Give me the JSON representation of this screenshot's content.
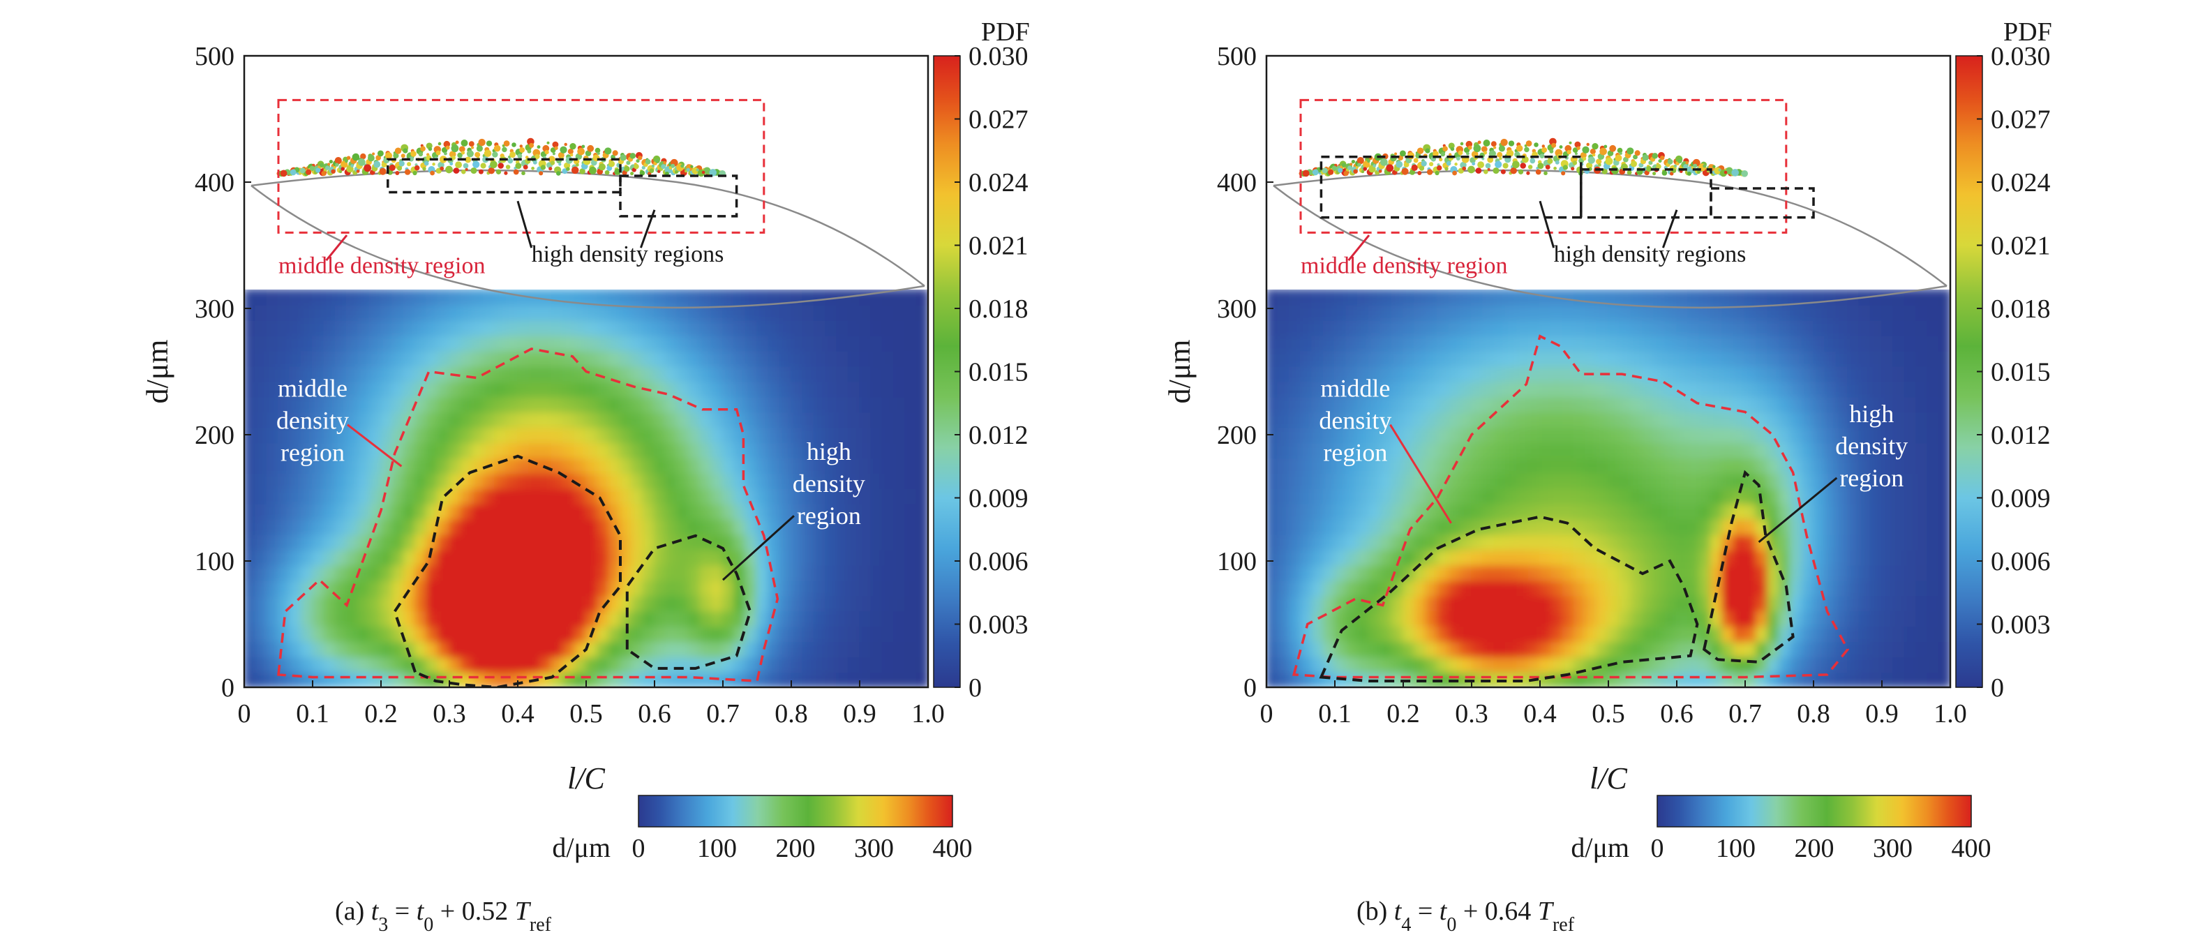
{
  "chart_data": [
    {
      "panel": "a",
      "type": "heatmap",
      "caption": {
        "prefix": "(a) ",
        "t": "t",
        "tsub": "3",
        "mid": " = ",
        "t0": "t",
        "t0sub": "0",
        "rest": " + 0.52 ",
        "T": "T",
        "Tsub": "ref"
      },
      "xlabel": "l/C",
      "ylabel": "d/μm",
      "xlim": [
        0,
        1.0
      ],
      "ylim": [
        0,
        500
      ],
      "xticks": [
        "0",
        "0.1",
        "0.2",
        "0.3",
        "0.4",
        "0.5",
        "0.6",
        "0.7",
        "0.8",
        "0.9",
        "1.0"
      ],
      "yticks": [
        "0",
        "100",
        "200",
        "300",
        "400",
        "500"
      ],
      "colorbar": {
        "title": "PDF",
        "range": [
          0,
          0.03
        ],
        "ticks": [
          "0",
          "0.003",
          "0.006",
          "0.009",
          "0.012",
          "0.015",
          "0.018",
          "0.021",
          "0.024",
          "0.027",
          "0.030"
        ]
      },
      "hcolorbar": {
        "label": "d/μm",
        "range": [
          0,
          400
        ],
        "ticks": [
          "0",
          "100",
          "200",
          "300",
          "400"
        ]
      },
      "contours": {
        "middle_density": [
          [
            0.05,
            10
          ],
          [
            0.06,
            60
          ],
          [
            0.11,
            85
          ],
          [
            0.15,
            65
          ],
          [
            0.2,
            140
          ],
          [
            0.22,
            185
          ],
          [
            0.27,
            250
          ],
          [
            0.34,
            245
          ],
          [
            0.42,
            268
          ],
          [
            0.48,
            262
          ],
          [
            0.5,
            250
          ],
          [
            0.57,
            238
          ],
          [
            0.62,
            232
          ],
          [
            0.67,
            220
          ],
          [
            0.72,
            220
          ],
          [
            0.73,
            200
          ],
          [
            0.73,
            160
          ],
          [
            0.76,
            120
          ],
          [
            0.78,
            70
          ],
          [
            0.76,
            30
          ],
          [
            0.75,
            5
          ],
          [
            0.65,
            8
          ],
          [
            0.55,
            8
          ],
          [
            0.45,
            8
          ],
          [
            0.3,
            8
          ],
          [
            0.2,
            8
          ],
          [
            0.1,
            8
          ],
          [
            0.05,
            10
          ]
        ],
        "high_density": [
          [
            [
              0.25,
              12
            ],
            [
              0.22,
              60
            ],
            [
              0.27,
              100
            ],
            [
              0.29,
              150
            ],
            [
              0.33,
              170
            ],
            [
              0.4,
              183
            ],
            [
              0.46,
              170
            ],
            [
              0.52,
              150
            ],
            [
              0.55,
              120
            ],
            [
              0.55,
              80
            ],
            [
              0.52,
              60
            ],
            [
              0.5,
              30
            ],
            [
              0.45,
              8
            ],
            [
              0.37,
              0
            ],
            [
              0.32,
              2
            ],
            [
              0.28,
              5
            ],
            [
              0.25,
              12
            ]
          ],
          [
            [
              0.56,
              30
            ],
            [
              0.56,
              80
            ],
            [
              0.6,
              110
            ],
            [
              0.66,
              120
            ],
            [
              0.7,
              110
            ],
            [
              0.72,
              90
            ],
            [
              0.74,
              60
            ],
            [
              0.72,
              25
            ],
            [
              0.66,
              15
            ],
            [
              0.6,
              15
            ],
            [
              0.56,
              30
            ]
          ]
        ]
      },
      "annotations": [
        {
          "lines": [
            "middle",
            "density",
            "region"
          ],
          "color": "#ffffff"
        },
        {
          "lines": [
            "high",
            "density",
            "region"
          ],
          "color": "#ffffff"
        }
      ],
      "inset": {
        "labels": {
          "middle": "middle density region",
          "high": "high density regions"
        }
      },
      "blobs": [
        {
          "x": 0.375,
          "y": 60,
          "sx": 0.085,
          "sy": 50,
          "a": 0.034
        },
        {
          "x": 0.45,
          "y": 110,
          "sx": 0.07,
          "sy": 45,
          "a": 0.006
        },
        {
          "x": 0.7,
          "y": 70,
          "sx": 0.035,
          "sy": 35,
          "a": 0.01
        },
        {
          "x": 0.4,
          "y": 140,
          "sx": 0.15,
          "sy": 90,
          "a": 0.012
        },
        {
          "x": 0.42,
          "y": 170,
          "sx": 0.21,
          "sy": 110,
          "a": 0.008
        },
        {
          "x": 0.15,
          "y": 55,
          "sx": 0.08,
          "sy": 40,
          "a": 0.011
        },
        {
          "x": 0.62,
          "y": 90,
          "sx": 0.12,
          "sy": 70,
          "a": 0.009
        },
        {
          "x": 0.5,
          "y": 220,
          "sx": 0.16,
          "sy": 60,
          "a": 0.004
        }
      ]
    },
    {
      "panel": "b",
      "type": "heatmap",
      "caption": {
        "prefix": "(b) ",
        "t": "t",
        "tsub": "4",
        "mid": " = ",
        "t0": "t",
        "t0sub": "0",
        "rest": " + 0.64 ",
        "T": "T",
        "Tsub": "ref"
      },
      "xlabel": "l/C",
      "ylabel": "d/μm",
      "xlim": [
        0,
        1.0
      ],
      "ylim": [
        0,
        500
      ],
      "xticks": [
        "0",
        "0.1",
        "0.2",
        "0.3",
        "0.4",
        "0.5",
        "0.6",
        "0.7",
        "0.8",
        "0.9",
        "1.0"
      ],
      "yticks": [
        "0",
        "100",
        "200",
        "300",
        "400",
        "500"
      ],
      "colorbar": {
        "title": "PDF",
        "range": [
          0,
          0.03
        ],
        "ticks": [
          "0",
          "0.003",
          "0.006",
          "0.009",
          "0.012",
          "0.015",
          "0.018",
          "0.021",
          "0.024",
          "0.027",
          "0.030"
        ]
      },
      "hcolorbar": {
        "label": "d/μm",
        "range": [
          0,
          400
        ],
        "ticks": [
          "0",
          "100",
          "200",
          "300",
          "400"
        ]
      },
      "contours": {
        "middle_density": [
          [
            0.04,
            10
          ],
          [
            0.06,
            50
          ],
          [
            0.13,
            70
          ],
          [
            0.17,
            65
          ],
          [
            0.21,
            125
          ],
          [
            0.25,
            150
          ],
          [
            0.3,
            200
          ],
          [
            0.38,
            240
          ],
          [
            0.4,
            278
          ],
          [
            0.43,
            270
          ],
          [
            0.46,
            248
          ],
          [
            0.52,
            248
          ],
          [
            0.58,
            242
          ],
          [
            0.63,
            225
          ],
          [
            0.7,
            218
          ],
          [
            0.74,
            200
          ],
          [
            0.77,
            170
          ],
          [
            0.79,
            120
          ],
          [
            0.82,
            60
          ],
          [
            0.85,
            30
          ],
          [
            0.82,
            10
          ],
          [
            0.7,
            8
          ],
          [
            0.5,
            8
          ],
          [
            0.3,
            8
          ],
          [
            0.1,
            8
          ],
          [
            0.04,
            10
          ]
        ],
        "high_density": [
          [
            [
              0.08,
              8
            ],
            [
              0.11,
              45
            ],
            [
              0.18,
              75
            ],
            [
              0.25,
              110
            ],
            [
              0.31,
              125
            ],
            [
              0.4,
              135
            ],
            [
              0.44,
              130
            ],
            [
              0.48,
              110
            ],
            [
              0.55,
              90
            ],
            [
              0.59,
              100
            ],
            [
              0.61,
              80
            ],
            [
              0.63,
              50
            ],
            [
              0.62,
              25
            ],
            [
              0.52,
              20
            ],
            [
              0.44,
              10
            ],
            [
              0.38,
              5
            ],
            [
              0.25,
              5
            ],
            [
              0.15,
              5
            ],
            [
              0.08,
              8
            ]
          ],
          [
            [
              0.64,
              30
            ],
            [
              0.66,
              80
            ],
            [
              0.68,
              130
            ],
            [
              0.7,
              170
            ],
            [
              0.72,
              160
            ],
            [
              0.73,
              120
            ],
            [
              0.76,
              80
            ],
            [
              0.77,
              40
            ],
            [
              0.72,
              20
            ],
            [
              0.66,
              22
            ],
            [
              0.64,
              30
            ]
          ]
        ]
      },
      "annotations": [
        {
          "lines": [
            "middle",
            "density",
            "region"
          ],
          "color": "#ffffff"
        },
        {
          "lines": [
            "high",
            "density",
            "region"
          ],
          "color": "#ffffff"
        }
      ],
      "inset": {
        "labels": {
          "middle": "middle density region",
          "high": "high density regions"
        }
      },
      "blobs": [
        {
          "x": 0.34,
          "y": 45,
          "sx": 0.1,
          "sy": 40,
          "a": 0.02
        },
        {
          "x": 0.7,
          "y": 75,
          "sx": 0.03,
          "sy": 40,
          "a": 0.024
        },
        {
          "x": 0.26,
          "y": 70,
          "sx": 0.06,
          "sy": 35,
          "a": 0.006
        },
        {
          "x": 0.4,
          "y": 130,
          "sx": 0.22,
          "sy": 100,
          "a": 0.011
        },
        {
          "x": 0.45,
          "y": 200,
          "sx": 0.22,
          "sy": 90,
          "a": 0.006
        },
        {
          "x": 0.12,
          "y": 45,
          "sx": 0.06,
          "sy": 40,
          "a": 0.009
        },
        {
          "x": 0.72,
          "y": 140,
          "sx": 0.07,
          "sy": 70,
          "a": 0.006
        },
        {
          "x": 0.55,
          "y": 60,
          "sx": 0.15,
          "sy": 60,
          "a": 0.008
        }
      ]
    }
  ]
}
